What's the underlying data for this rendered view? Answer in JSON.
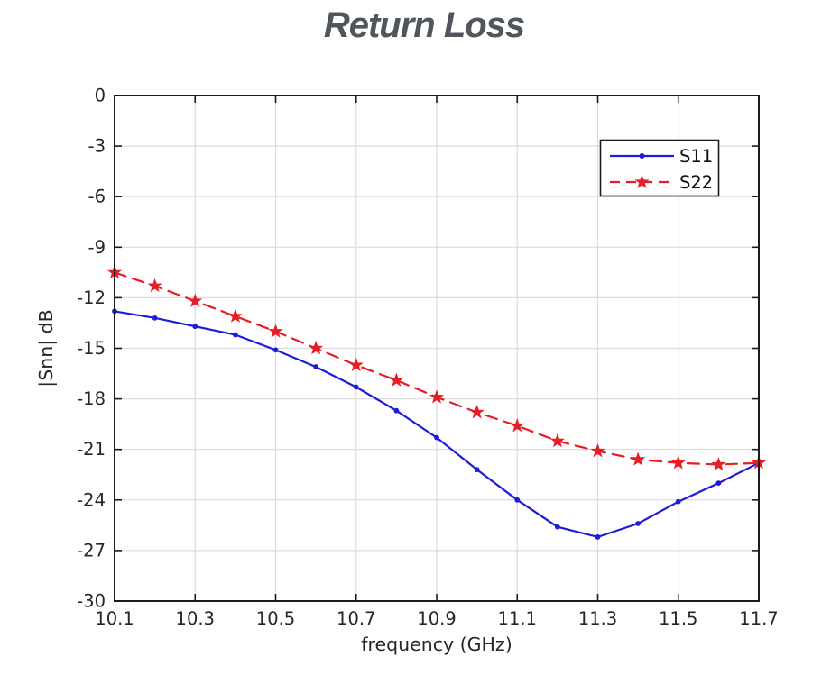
{
  "title": "Return Loss",
  "colors": {
    "title": "#51565c",
    "axis": "#1a1a1a",
    "grid": "#dcdcdc",
    "tick_label": "#262626",
    "legend_border": "#1a1a1a",
    "legend_background": "#ffffff",
    "s11": "#1c1cd9",
    "s22": "#e81c24"
  },
  "chart_data": {
    "type": "line",
    "title": "Return Loss",
    "xlabel": "frequency (GHz)",
    "ylabel": "|Snn| dB",
    "xlim": [
      10.1,
      11.7
    ],
    "ylim": [
      -30,
      0
    ],
    "grid": true,
    "legend_position": "top-right",
    "xticks": [
      10.1,
      10.3,
      10.5,
      10.7,
      10.9,
      11.1,
      11.3,
      11.5,
      11.7
    ],
    "xtick_labels": [
      "10.1",
      "10.3",
      "10.5",
      "10.7",
      "10.9",
      "11.1",
      "11.3",
      "11.5",
      "11.7"
    ],
    "yticks": [
      0,
      -3,
      -6,
      -9,
      -12,
      -15,
      -18,
      -21,
      -24,
      -27,
      -30
    ],
    "ytick_labels": [
      "0",
      "-3",
      "-6",
      "-9",
      "-12",
      "-15",
      "-18",
      "-21",
      "-24",
      "-27",
      "-30"
    ],
    "x": [
      10.1,
      10.2,
      10.3,
      10.4,
      10.5,
      10.6,
      10.7,
      10.8,
      10.9,
      11.0,
      11.1,
      11.2,
      11.3,
      11.4,
      11.5,
      11.6,
      11.7
    ],
    "series": [
      {
        "name": "S11",
        "color": "#1c1cd9",
        "style": "solid",
        "marker": "dot",
        "values": [
          -12.8,
          -13.2,
          -13.7,
          -14.2,
          -15.1,
          -16.1,
          -17.3,
          -18.7,
          -20.3,
          -22.2,
          -24.0,
          -25.6,
          -26.2,
          -25.4,
          -24.1,
          -23.0,
          -21.8
        ]
      },
      {
        "name": "S22",
        "color": "#e81c24",
        "style": "dashed",
        "marker": "star",
        "values": [
          -10.5,
          -11.3,
          -12.2,
          -13.1,
          -14.0,
          -15.0,
          -16.0,
          -16.9,
          -17.9,
          -18.8,
          -19.6,
          -20.5,
          -21.1,
          -21.6,
          -21.8,
          -21.9,
          -21.8
        ]
      }
    ]
  }
}
